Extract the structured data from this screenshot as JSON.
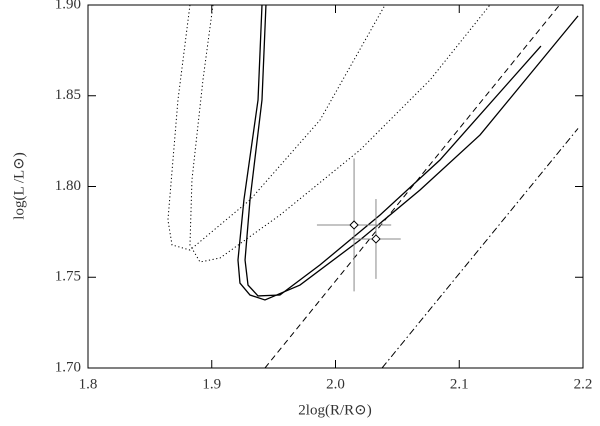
{
  "chart_data": {
    "type": "line",
    "xlabel": "2log(R/R⊙)",
    "ylabel": "log(L /L⊙)",
    "xlim": [
      1.8,
      2.2
    ],
    "ylim": [
      1.7,
      1.9
    ],
    "xticks": [
      1.8,
      1.9,
      {
        "value": 2,
        "label": "2.0"
      },
      2.1,
      2.2
    ],
    "yticks": [
      {
        "value": 1.7,
        "label": "1.70"
      },
      1.75,
      {
        "value": 1.8,
        "label": "1.80"
      },
      1.85,
      {
        "value": 1.9,
        "label": "1.90"
      }
    ],
    "color": "#000000",
    "series": [
      {
        "style": "solid",
        "x": [
          1.9406,
          1.9374,
          1.926,
          1.9212,
          1.9228,
          1.9309,
          1.943,
          1.9713,
          2.0198,
          2.0683,
          2.1168,
          2.196
        ],
        "values": [
          1.9,
          1.8477,
          1.7926,
          1.7595,
          1.7468,
          1.7402,
          1.7375,
          1.7457,
          1.7705,
          1.7981,
          1.8284,
          1.894
        ]
      },
      {
        "style": "solid",
        "x": [
          1.9438,
          1.9406,
          1.9309,
          1.9269,
          1.9293,
          1.9374,
          1.9551,
          1.9875,
          2.036,
          2.0844,
          2.166
        ],
        "values": [
          1.9,
          1.8477,
          1.7926,
          1.7595,
          1.7457,
          1.7397,
          1.7402,
          1.7568,
          1.7843,
          1.8146,
          1.8774
        ]
      },
      {
        "style": "dotted",
        "x": [
          1.8824,
          1.8727,
          1.8646,
          1.8679,
          1.8824,
          1.9309,
          1.9875,
          2.04
        ],
        "values": [
          1.9,
          1.8477,
          1.7815,
          1.7678,
          1.765,
          1.7926,
          1.8366,
          1.9
        ]
      },
      {
        "style": "dotted",
        "x": [
          1.901,
          1.8929,
          1.884,
          1.8824,
          1.8905,
          1.9067,
          1.9552,
          2.0198,
          2.0764,
          2.1248
        ],
        "values": [
          1.9,
          1.8587,
          1.8036,
          1.7678,
          1.7584,
          1.7606,
          1.7843,
          1.8201,
          1.8587,
          1.9
        ]
      },
      {
        "style": "dashed",
        "x": [
          1.943,
          2.181
        ],
        "values": [
          1.7,
          1.9
        ]
      },
      {
        "style": "dashdot",
        "x": [
          2.0376,
          2.196
        ],
        "values": [
          1.7,
          1.832
        ]
      }
    ],
    "points": {
      "x": [
        2.015,
        2.0327
      ],
      "values": [
        1.7788,
        1.7711
      ],
      "xerr": [
        0.03,
        0.02
      ],
      "yerr": [
        0.0366,
        0.022
      ],
      "errcolor": "#888888"
    }
  }
}
